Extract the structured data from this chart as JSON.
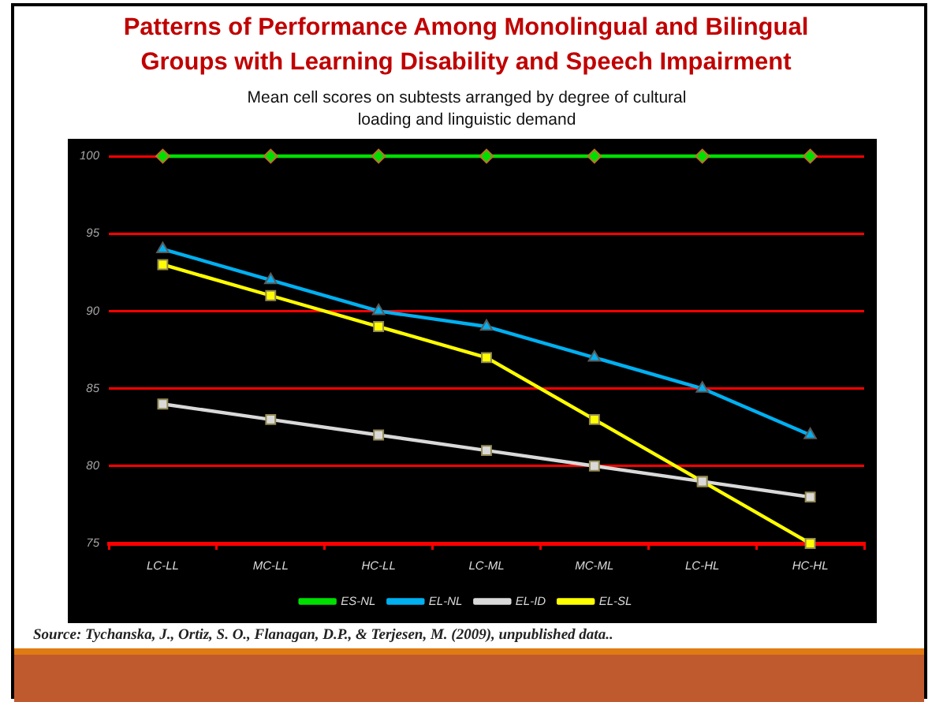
{
  "chart_data": {
    "type": "line",
    "title": "Patterns of Performance Among Monolingual and Bilingual Groups with Learning Disability and Speech Impairment",
    "subtitle": "Mean cell scores on subtests arranged by degree of cultural loading and linguistic demand",
    "annotations": [
      "Source: Tychanska, J., Ortiz, S. O., Flanagan, D.P., & Terjesen, M. (2009), unpublished data.."
    ],
    "categories": [
      "LC-LL",
      "MC-LL",
      "HC-LL",
      "LC-ML",
      "MC-ML",
      "LC-HL",
      "HC-HL"
    ],
    "series": [
      {
        "name": "ES-NL",
        "color": "#00e000",
        "marker": "diamond",
        "values": [
          100,
          100,
          100,
          100,
          100,
          100,
          100
        ]
      },
      {
        "name": "EL-NL",
        "color": "#00b0f0",
        "marker": "triangle",
        "values": [
          94,
          92,
          90,
          89,
          87,
          85,
          82
        ]
      },
      {
        "name": "EL-ID",
        "color": "#d9d9d9",
        "marker": "square",
        "values": [
          84,
          83,
          82,
          81,
          80,
          79,
          78
        ]
      },
      {
        "name": "EL-SL",
        "color": "#ffff00",
        "marker": "square",
        "values": [
          93,
          91,
          89,
          87,
          83,
          79,
          75
        ]
      }
    ],
    "ylim": [
      75,
      100
    ],
    "yticks": [
      75,
      80,
      85,
      90,
      95,
      100
    ],
    "grid": "y",
    "legend": "bottom",
    "line_style": "solid"
  }
}
